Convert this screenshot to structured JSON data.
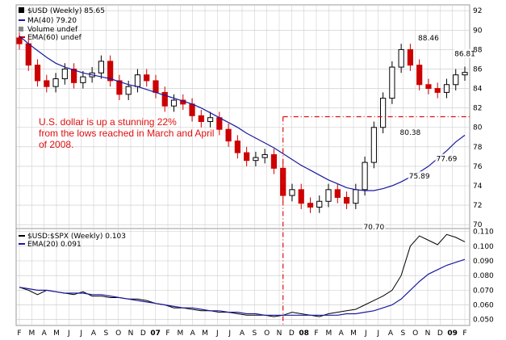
{
  "colors": {
    "up": "#000000",
    "down": "#cc0000",
    "ma": "#1a1aa0",
    "ema_red": "#cc0000",
    "annotation": "#e01010",
    "grid": "#c8c8c8",
    "ratio": "#000000",
    "ema20": "#1a1aa0"
  },
  "chart_data": [
    {
      "type": "candlestick",
      "legend": [
        {
          "icon": "candle-icon",
          "text": "$USD (Weekly) 85.65"
        },
        {
          "icon": "line-icon",
          "text": "MA(40) 79.20"
        },
        {
          "icon": "bar-icon",
          "text": "Volume undef"
        },
        {
          "icon": "line-icon",
          "text": "EMA(60) undef"
        }
      ],
      "y_ticks": [
        "92",
        "90",
        "88",
        "86",
        "84",
        "82",
        "80",
        "78",
        "76",
        "74",
        "72",
        "70"
      ],
      "ylim": [
        69.6,
        92.6
      ],
      "annotation": {
        "lines": [
          "U.S. dollar is up a stunning 22%",
          "from the lows reached in March and April",
          "of 2008."
        ],
        "level": 81.1,
        "date_index": 29
      },
      "price_labels": [
        {
          "text": "88.46",
          "index": 45,
          "value": 88.46
        },
        {
          "text": "86.81",
          "index": 49,
          "value": 86.81
        },
        {
          "text": "80.38",
          "index": 43,
          "value": 80.38
        },
        {
          "text": "77.69",
          "index": 47,
          "value": 77.69
        },
        {
          "text": "75.89",
          "index": 44,
          "value": 75.89
        },
        {
          "text": "70.70",
          "index": 39,
          "value": 70.7
        }
      ],
      "close": [
        88.6,
        86.4,
        84.8,
        84.2,
        85.0,
        86.0,
        84.6,
        85.2,
        85.6,
        86.8,
        84.8,
        83.4,
        84.2,
        85.4,
        84.8,
        83.6,
        82.2,
        82.8,
        82.4,
        81.2,
        80.6,
        81.0,
        79.8,
        78.6,
        77.4,
        76.6,
        76.9,
        77.2,
        75.8,
        73.0,
        73.6,
        72.2,
        71.8,
        72.4,
        73.6,
        72.8,
        72.2,
        73.6,
        76.4,
        80.0,
        83.0,
        86.2,
        88.0,
        86.4,
        84.4,
        84.0,
        83.6,
        84.4,
        85.4,
        85.65
      ],
      "ma40": [
        89.4,
        88.6,
        87.9,
        87.2,
        86.6,
        86.2,
        85.9,
        85.6,
        85.4,
        85.2,
        85.0,
        84.7,
        84.4,
        84.2,
        83.9,
        83.6,
        83.3,
        83.0,
        82.7,
        82.4,
        82.0,
        81.5,
        81.0,
        80.5,
        80.0,
        79.4,
        78.9,
        78.4,
        77.9,
        77.3,
        76.7,
        76.1,
        75.6,
        75.1,
        74.6,
        74.2,
        73.8,
        73.6,
        73.5,
        73.5,
        73.7,
        74.0,
        74.4,
        74.9,
        75.4,
        76.0,
        76.8,
        77.6,
        78.5,
        79.2
      ],
      "ratio_legend": [
        {
          "icon": "line-icon",
          "text": "$USD:$SPX (Weekly) 0.103"
        },
        {
          "icon": "line-icon",
          "text": "EMA(20) 0.091"
        }
      ],
      "ratio_ticks": [
        "0.110",
        "0.100",
        "0.090",
        "0.080",
        "0.070",
        "0.060",
        "0.050"
      ],
      "ratio_ylim": [
        0.046,
        0.112
      ],
      "ratio": [
        0.072,
        0.07,
        0.067,
        0.07,
        0.069,
        0.068,
        0.067,
        0.069,
        0.066,
        0.066,
        0.065,
        0.065,
        0.064,
        0.064,
        0.063,
        0.061,
        0.06,
        0.058,
        0.058,
        0.057,
        0.056,
        0.056,
        0.055,
        0.055,
        0.054,
        0.053,
        0.053,
        0.053,
        0.052,
        0.053,
        0.055,
        0.054,
        0.053,
        0.052,
        0.054,
        0.055,
        0.056,
        0.057,
        0.06,
        0.063,
        0.066,
        0.07,
        0.08,
        0.1,
        0.107,
        0.104,
        0.101,
        0.108,
        0.106,
        0.103
      ],
      "ema20": [
        0.072,
        0.071,
        0.07,
        0.07,
        0.069,
        0.068,
        0.068,
        0.068,
        0.067,
        0.067,
        0.066,
        0.065,
        0.064,
        0.063,
        0.062,
        0.061,
        0.06,
        0.059,
        0.058,
        0.058,
        0.057,
        0.056,
        0.056,
        0.055,
        0.055,
        0.054,
        0.054,
        0.053,
        0.053,
        0.053,
        0.053,
        0.053,
        0.053,
        0.053,
        0.053,
        0.053,
        0.054,
        0.054,
        0.055,
        0.056,
        0.058,
        0.06,
        0.064,
        0.07,
        0.076,
        0.081,
        0.084,
        0.087,
        0.089,
        0.091
      ],
      "x_ticks": [
        {
          "label": "F",
          "index": 0,
          "bold": false
        },
        {
          "label": "M",
          "index": 1,
          "bold": false
        },
        {
          "label": "A",
          "index": 2,
          "bold": false
        },
        {
          "label": "M",
          "index": 3,
          "bold": false
        },
        {
          "label": "J",
          "index": 4,
          "bold": false
        },
        {
          "label": "J",
          "index": 5,
          "bold": false
        },
        {
          "label": "A",
          "index": 6,
          "bold": false
        },
        {
          "label": "S",
          "index": 7,
          "bold": false
        },
        {
          "label": "O",
          "index": 8,
          "bold": false
        },
        {
          "label": "N",
          "index": 9,
          "bold": false
        },
        {
          "label": "D",
          "index": 10,
          "bold": false
        },
        {
          "label": "07",
          "index": 11,
          "bold": true
        },
        {
          "label": "F",
          "index": 12,
          "bold": false
        },
        {
          "label": "M",
          "index": 13,
          "bold": false
        },
        {
          "label": "A",
          "index": 14,
          "bold": false
        },
        {
          "label": "M",
          "index": 15,
          "bold": false
        },
        {
          "label": "J",
          "index": 16,
          "bold": false
        },
        {
          "label": "J",
          "index": 17,
          "bold": false
        },
        {
          "label": "A",
          "index": 18,
          "bold": false
        },
        {
          "label": "S",
          "index": 19,
          "bold": false
        },
        {
          "label": "O",
          "index": 20,
          "bold": false
        },
        {
          "label": "N",
          "index": 21,
          "bold": false
        },
        {
          "label": "D",
          "index": 22,
          "bold": false
        },
        {
          "label": "08",
          "index": 23,
          "bold": true
        },
        {
          "label": "F",
          "index": 24,
          "bold": false
        },
        {
          "label": "M",
          "index": 25,
          "bold": false
        },
        {
          "label": "A",
          "index": 26,
          "bold": false
        },
        {
          "label": "M",
          "index": 27,
          "bold": false
        },
        {
          "label": "J",
          "index": 28,
          "bold": false
        },
        {
          "label": "J",
          "index": 29,
          "bold": false
        },
        {
          "label": "A",
          "index": 30,
          "bold": false
        },
        {
          "label": "S",
          "index": 31,
          "bold": false
        },
        {
          "label": "O",
          "index": 32,
          "bold": false
        },
        {
          "label": "N",
          "index": 33,
          "bold": false
        },
        {
          "label": "D",
          "index": 34,
          "bold": false
        },
        {
          "label": "09",
          "index": 35,
          "bold": true
        },
        {
          "label": "F",
          "index": 36,
          "bold": false
        }
      ]
    }
  ]
}
